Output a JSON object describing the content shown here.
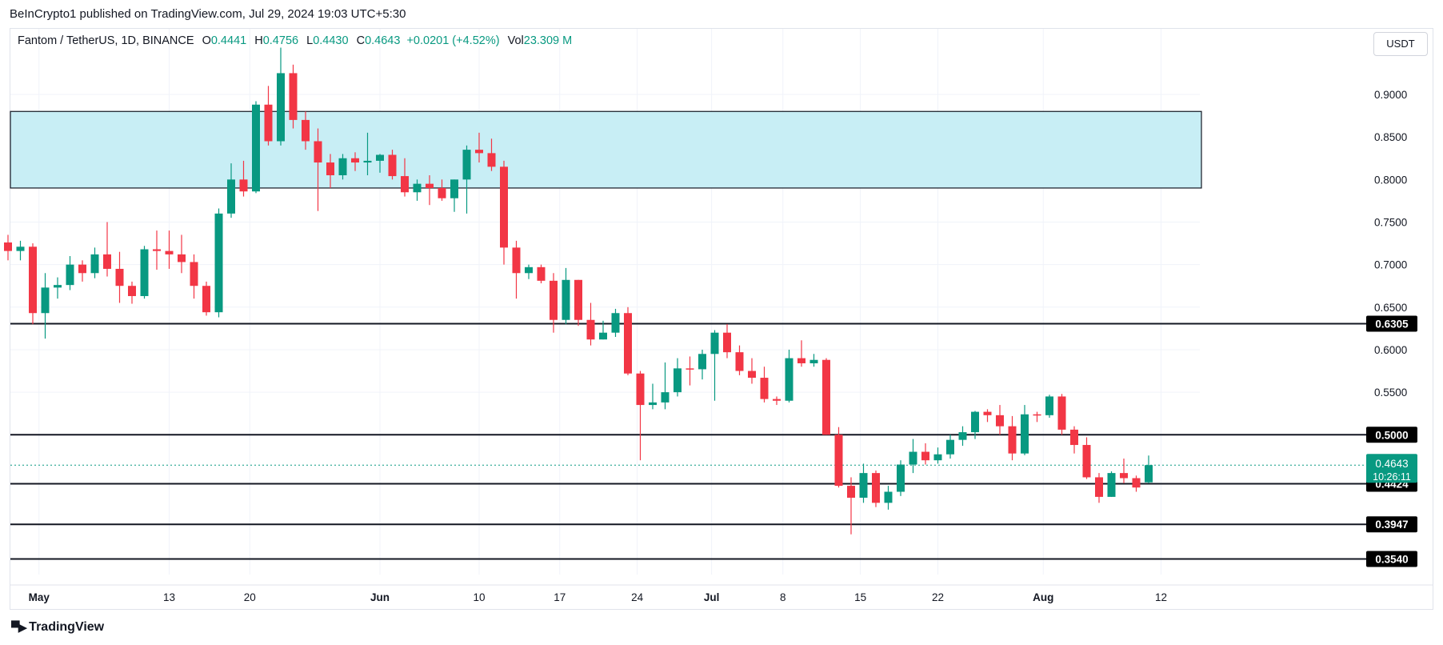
{
  "attribution": "BeInCrypto1 published on TradingView.com, Jul 29, 2024 19:03 UTC+5:30",
  "legend": {
    "symbol": "Fantom / TetherUS, 1D, BINANCE",
    "open_label": "O",
    "open": "0.4441",
    "high_label": "H",
    "high": "0.4756",
    "low_label": "L",
    "low": "0.4430",
    "close_label": "C",
    "close": "0.4643",
    "change": "+0.0201 (+4.52%)",
    "vol_label": "Vol",
    "vol": "23.309 M"
  },
  "currency_button": "USDT",
  "logo_text": "TradingView",
  "colors": {
    "up": "#089981",
    "down": "#f23645",
    "zone": "#c8eef5",
    "grid": "#f0f3fa"
  },
  "chart_data": {
    "type": "candlestick",
    "y_ticks": [
      "0.9000",
      "0.8500",
      "0.8000",
      "0.7500",
      "0.7000",
      "0.6500",
      "0.6000",
      "0.5500",
      "0.5000"
    ],
    "x_ticks": [
      "May",
      "13",
      "20",
      "Jun",
      "10",
      "17",
      "24",
      "Jul",
      "8",
      "15",
      "22",
      "Aug",
      "12"
    ],
    "horizontal_levels": [
      "0.6305",
      "0.5000",
      "0.4424",
      "0.3947",
      "0.3540"
    ],
    "last_price_label": "0.4643",
    "countdown_label": "10:26:11",
    "resistance_zone": [
      0.79,
      0.88
    ],
    "candles": [
      [
        0.726,
        0.735,
        0.705,
        0.716
      ],
      [
        0.716,
        0.728,
        0.705,
        0.721
      ],
      [
        0.721,
        0.725,
        0.63,
        0.643
      ],
      [
        0.643,
        0.69,
        0.613,
        0.673
      ],
      [
        0.673,
        0.685,
        0.66,
        0.676
      ],
      [
        0.676,
        0.71,
        0.67,
        0.7
      ],
      [
        0.7,
        0.705,
        0.68,
        0.69
      ],
      [
        0.69,
        0.72,
        0.684,
        0.712
      ],
      [
        0.712,
        0.75,
        0.686,
        0.695
      ],
      [
        0.695,
        0.715,
        0.655,
        0.675
      ],
      [
        0.675,
        0.68,
        0.654,
        0.663
      ],
      [
        0.663,
        0.722,
        0.66,
        0.718
      ],
      [
        0.718,
        0.74,
        0.694,
        0.716
      ],
      [
        0.716,
        0.74,
        0.695,
        0.712
      ],
      [
        0.712,
        0.735,
        0.69,
        0.703
      ],
      [
        0.703,
        0.712,
        0.66,
        0.675
      ],
      [
        0.675,
        0.68,
        0.64,
        0.644
      ],
      [
        0.644,
        0.766,
        0.638,
        0.76
      ],
      [
        0.76,
        0.819,
        0.755,
        0.8
      ],
      [
        0.8,
        0.822,
        0.78,
        0.786
      ],
      [
        0.786,
        0.892,
        0.784,
        0.888
      ],
      [
        0.888,
        0.91,
        0.84,
        0.845
      ],
      [
        0.845,
        0.955,
        0.84,
        0.925
      ],
      [
        0.925,
        0.935,
        0.86,
        0.87
      ],
      [
        0.87,
        0.88,
        0.835,
        0.845
      ],
      [
        0.845,
        0.86,
        0.763,
        0.82
      ],
      [
        0.82,
        0.83,
        0.79,
        0.805
      ],
      [
        0.805,
        0.83,
        0.8,
        0.825
      ],
      [
        0.825,
        0.832,
        0.81,
        0.82
      ],
      [
        0.82,
        0.855,
        0.805,
        0.822
      ],
      [
        0.822,
        0.83,
        0.808,
        0.829
      ],
      [
        0.829,
        0.835,
        0.8,
        0.804
      ],
      [
        0.804,
        0.825,
        0.78,
        0.785
      ],
      [
        0.785,
        0.8,
        0.775,
        0.795
      ],
      [
        0.795,
        0.805,
        0.77,
        0.79
      ],
      [
        0.79,
        0.8,
        0.775,
        0.778
      ],
      [
        0.778,
        0.8,
        0.762,
        0.8
      ],
      [
        0.8,
        0.84,
        0.76,
        0.835
      ],
      [
        0.835,
        0.855,
        0.82,
        0.831
      ],
      [
        0.831,
        0.848,
        0.81,
        0.815
      ],
      [
        0.815,
        0.822,
        0.7,
        0.72
      ],
      [
        0.72,
        0.728,
        0.66,
        0.69
      ],
      [
        0.69,
        0.7,
        0.683,
        0.697
      ],
      [
        0.697,
        0.7,
        0.678,
        0.681
      ],
      [
        0.681,
        0.69,
        0.62,
        0.635
      ],
      [
        0.635,
        0.696,
        0.63,
        0.682
      ],
      [
        0.682,
        0.682,
        0.628,
        0.635
      ],
      [
        0.635,
        0.655,
        0.605,
        0.612
      ],
      [
        0.612,
        0.634,
        0.612,
        0.62
      ],
      [
        0.62,
        0.648,
        0.615,
        0.643
      ],
      [
        0.643,
        0.65,
        0.57,
        0.572
      ],
      [
        0.572,
        0.575,
        0.47,
        0.535
      ],
      [
        0.535,
        0.56,
        0.53,
        0.538
      ],
      [
        0.538,
        0.585,
        0.53,
        0.55
      ],
      [
        0.55,
        0.59,
        0.545,
        0.578
      ],
      [
        0.578,
        0.592,
        0.558,
        0.577
      ],
      [
        0.577,
        0.6,
        0.565,
        0.595
      ],
      [
        0.595,
        0.623,
        0.54,
        0.62
      ],
      [
        0.62,
        0.63,
        0.59,
        0.597
      ],
      [
        0.597,
        0.605,
        0.57,
        0.575
      ],
      [
        0.575,
        0.59,
        0.56,
        0.567
      ],
      [
        0.567,
        0.58,
        0.538,
        0.542
      ],
      [
        0.542,
        0.545,
        0.535,
        0.54
      ],
      [
        0.54,
        0.6,
        0.538,
        0.59
      ],
      [
        0.59,
        0.611,
        0.58,
        0.584
      ],
      [
        0.584,
        0.595,
        0.58,
        0.588
      ],
      [
        0.588,
        0.59,
        0.5,
        0.5
      ],
      [
        0.5,
        0.509,
        0.438,
        0.44
      ],
      [
        0.44,
        0.45,
        0.383,
        0.426
      ],
      [
        0.426,
        0.466,
        0.42,
        0.455
      ],
      [
        0.455,
        0.458,
        0.415,
        0.42
      ],
      [
        0.42,
        0.44,
        0.412,
        0.433
      ],
      [
        0.433,
        0.47,
        0.428,
        0.465
      ],
      [
        0.465,
        0.495,
        0.455,
        0.48
      ],
      [
        0.48,
        0.49,
        0.465,
        0.47
      ],
      [
        0.47,
        0.485,
        0.466,
        0.477
      ],
      [
        0.477,
        0.5,
        0.472,
        0.494
      ],
      [
        0.494,
        0.51,
        0.487,
        0.503
      ],
      [
        0.503,
        0.528,
        0.495,
        0.527
      ],
      [
        0.527,
        0.53,
        0.515,
        0.523
      ],
      [
        0.523,
        0.535,
        0.5,
        0.51
      ],
      [
        0.51,
        0.522,
        0.47,
        0.478
      ],
      [
        0.478,
        0.535,
        0.476,
        0.524
      ],
      [
        0.524,
        0.527,
        0.515,
        0.523
      ],
      [
        0.523,
        0.547,
        0.52,
        0.545
      ],
      [
        0.545,
        0.548,
        0.5,
        0.506
      ],
      [
        0.506,
        0.51,
        0.478,
        0.488
      ],
      [
        0.488,
        0.497,
        0.448,
        0.45
      ],
      [
        0.45,
        0.455,
        0.42,
        0.427
      ],
      [
        0.427,
        0.457,
        0.427,
        0.455
      ],
      [
        0.455,
        0.472,
        0.443,
        0.449
      ],
      [
        0.449,
        0.452,
        0.433,
        0.438
      ],
      [
        0.4441,
        0.4756,
        0.443,
        0.4643
      ]
    ]
  }
}
